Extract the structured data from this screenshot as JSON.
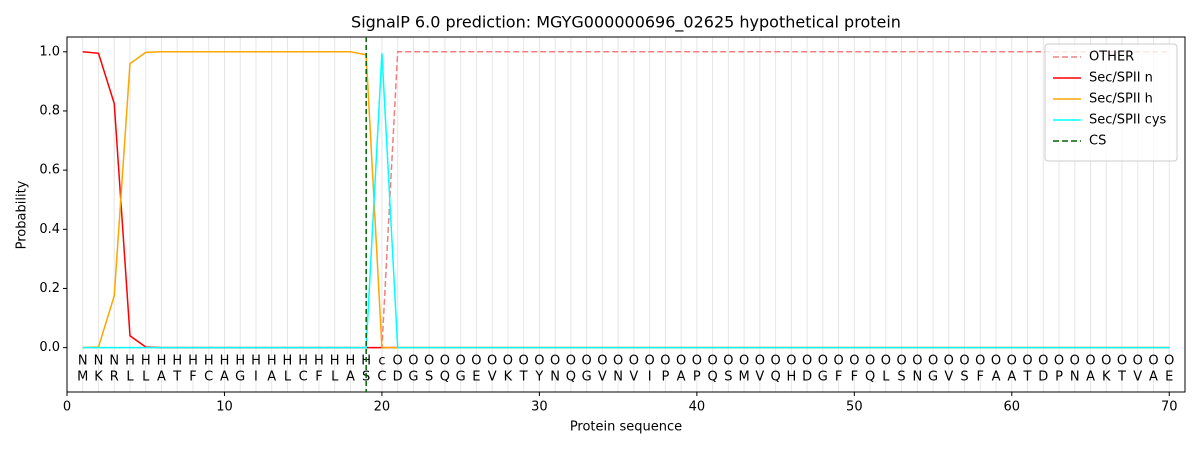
{
  "chart_data": {
    "type": "line",
    "title": "SignalP 6.0 prediction: MGYG000000696_02625 hypothetical protein",
    "x_label": "Protein sequence",
    "y_label": "Probability",
    "xlim": [
      0,
      71
    ],
    "ylim": [
      -0.15,
      1.05
    ],
    "xticks": [
      0,
      10,
      20,
      30,
      40,
      50,
      60,
      70
    ],
    "yticks": [
      {
        "value": 0,
        "label": "0.0"
      },
      {
        "value": 0.2,
        "label": "0.2"
      },
      {
        "value": 0.4,
        "label": "0.4"
      },
      {
        "value": 0.6,
        "label": "0.6"
      },
      {
        "value": 0.8,
        "label": "0.8"
      },
      {
        "value": 1,
        "label": "1.0"
      }
    ],
    "grid": true,
    "legend": "upper right",
    "x": [
      1,
      2,
      3,
      4,
      5,
      6,
      7,
      8,
      9,
      10,
      11,
      12,
      13,
      14,
      15,
      16,
      17,
      18,
      19,
      20,
      21,
      22,
      23,
      24,
      25,
      26,
      27,
      28,
      29,
      30,
      31,
      32,
      33,
      34,
      35,
      36,
      37,
      38,
      39,
      40,
      41,
      42,
      43,
      44,
      45,
      46,
      47,
      48,
      49,
      50,
      51,
      52,
      53,
      54,
      55,
      56,
      57,
      58,
      59,
      60,
      61,
      62,
      63,
      64,
      65,
      66,
      67,
      68,
      69,
      70
    ],
    "residues": [
      "M",
      "K",
      "R",
      "L",
      "L",
      "A",
      "T",
      "F",
      "C",
      "A",
      "G",
      "I",
      "A",
      "L",
      "C",
      "F",
      "L",
      "A",
      "S",
      "C",
      "D",
      "G",
      "S",
      "Q",
      "G",
      "E",
      "V",
      "K",
      "T",
      "Y",
      "N",
      "Q",
      "G",
      "V",
      "N",
      "V",
      "I",
      "P",
      "A",
      "P",
      "Q",
      "S",
      "M",
      "V",
      "Q",
      "H",
      "D",
      "G",
      "F",
      "F",
      "Q",
      "L",
      "S",
      "N",
      "G",
      "V",
      "S",
      "F",
      "A",
      "A",
      "T",
      "D",
      "P",
      "N",
      "A",
      "K",
      "T",
      "V",
      "A",
      "E"
    ],
    "labels": [
      "N",
      "N",
      "N",
      "H",
      "H",
      "H",
      "H",
      "H",
      "H",
      "H",
      "H",
      "H",
      "H",
      "H",
      "H",
      "H",
      "H",
      "H",
      "H",
      "c",
      "O",
      "O",
      "O",
      "O",
      "O",
      "O",
      "O",
      "O",
      "O",
      "O",
      "O",
      "O",
      "O",
      "O",
      "O",
      "O",
      "O",
      "O",
      "O",
      "O",
      "O",
      "O",
      "O",
      "O",
      "O",
      "O",
      "O",
      "O",
      "O",
      "O",
      "O",
      "O",
      "O",
      "O",
      "O",
      "O",
      "O",
      "O",
      "O",
      "O",
      "O",
      "O",
      "O",
      "O",
      "O",
      "O",
      "O",
      "O",
      "O",
      "O"
    ],
    "label_colors": {
      "N": "#ff0000",
      "H": "#ffa500",
      "c": "#00ffff",
      "O": "#808080"
    },
    "series": [
      {
        "name": "OTHER",
        "color": "#f08080",
        "dashed": true,
        "values": [
          0,
          0,
          0,
          0,
          0,
          0,
          0,
          0,
          0,
          0,
          0,
          0,
          0,
          0,
          0,
          0,
          0,
          0,
          0,
          0,
          1,
          1,
          1,
          1,
          1,
          1,
          1,
          1,
          1,
          1,
          1,
          1,
          1,
          1,
          1,
          1,
          1,
          1,
          1,
          1,
          1,
          1,
          1,
          1,
          1,
          1,
          1,
          1,
          1,
          1,
          1,
          1,
          1,
          1,
          1,
          1,
          1,
          1,
          1,
          1,
          1,
          1,
          1,
          1,
          1,
          1,
          1,
          1,
          1,
          1
        ]
      },
      {
        "name": "Sec/SPII n",
        "color": "#ff0000",
        "values": [
          1,
          0.995,
          0.825,
          0.04,
          0.002,
          0,
          0,
          0,
          0,
          0,
          0,
          0,
          0,
          0,
          0,
          0,
          0,
          0,
          0,
          0,
          0,
          0,
          0,
          0,
          0,
          0,
          0,
          0,
          0,
          0,
          0,
          0,
          0,
          0,
          0,
          0,
          0,
          0,
          0,
          0,
          0,
          0,
          0,
          0,
          0,
          0,
          0,
          0,
          0,
          0,
          0,
          0,
          0,
          0,
          0,
          0,
          0,
          0,
          0,
          0,
          0,
          0,
          0,
          0,
          0,
          0,
          0,
          0,
          0,
          0
        ]
      },
      {
        "name": "Sec/SPII h",
        "color": "#ffa500",
        "values": [
          0,
          0.002,
          0.175,
          0.96,
          0.998,
          1,
          1,
          1,
          1,
          1,
          1,
          1,
          1,
          1,
          1,
          1,
          1,
          1,
          0.99,
          0,
          0,
          0,
          0,
          0,
          0,
          0,
          0,
          0,
          0,
          0,
          0,
          0,
          0,
          0,
          0,
          0,
          0,
          0,
          0,
          0,
          0,
          0,
          0,
          0,
          0,
          0,
          0,
          0,
          0,
          0,
          0,
          0,
          0,
          0,
          0,
          0,
          0,
          0,
          0,
          0,
          0,
          0,
          0,
          0,
          0,
          0,
          0,
          0,
          0,
          0
        ]
      },
      {
        "name": "Sec/SPII cys",
        "color": "#00ffff",
        "values": [
          0,
          0,
          0,
          0,
          0,
          0,
          0,
          0,
          0,
          0,
          0,
          0,
          0,
          0,
          0,
          0,
          0,
          0,
          0,
          0.995,
          0,
          0,
          0,
          0,
          0,
          0,
          0,
          0,
          0,
          0,
          0,
          0,
          0,
          0,
          0,
          0,
          0,
          0,
          0,
          0,
          0,
          0,
          0,
          0,
          0,
          0,
          0,
          0,
          0,
          0,
          0,
          0,
          0,
          0,
          0,
          0,
          0,
          0,
          0,
          0,
          0,
          0,
          0,
          0,
          0,
          0,
          0,
          0,
          0,
          0
        ]
      }
    ],
    "cs": {
      "name": "CS",
      "x": 19,
      "color": "#006400"
    }
  }
}
